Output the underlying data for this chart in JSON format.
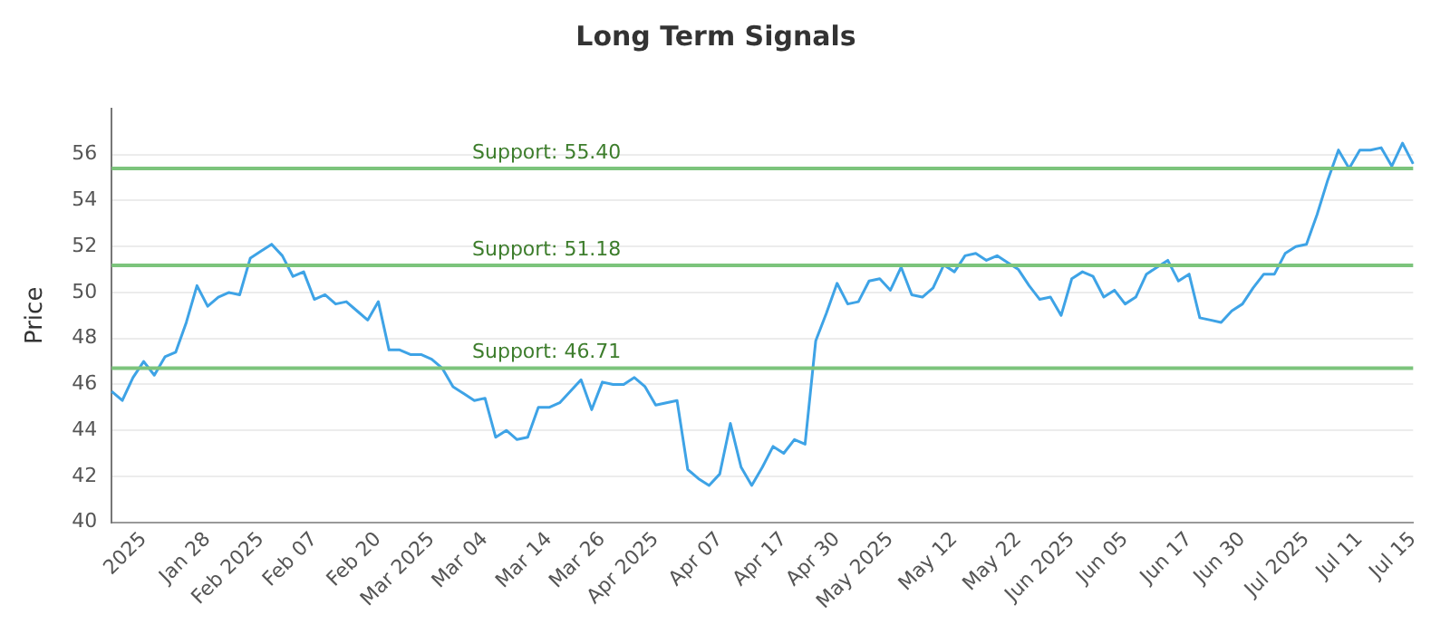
{
  "chart_data": {
    "type": "line",
    "title": "Long Term Signals",
    "ylabel": "Price",
    "categories": [
      null,
      null,
      null,
      "2025",
      null,
      null,
      null,
      null,
      null,
      "Jan 28",
      null,
      null,
      null,
      null,
      "Feb 2025",
      null,
      null,
      null,
      null,
      "Feb 07",
      null,
      null,
      null,
      null,
      null,
      "Feb 20",
      null,
      null,
      null,
      null,
      "Mar 2025",
      null,
      null,
      null,
      null,
      "Mar 04",
      null,
      null,
      null,
      null,
      null,
      "Mar 14",
      null,
      null,
      null,
      null,
      "Mar 26",
      null,
      null,
      null,
      null,
      "Apr 2025",
      null,
      null,
      null,
      null,
      null,
      "Apr 07",
      null,
      null,
      null,
      null,
      null,
      "Apr 17",
      null,
      null,
      null,
      null,
      "Apr 30",
      null,
      null,
      null,
      null,
      "May 2025",
      null,
      null,
      null,
      null,
      null,
      "May 12",
      null,
      null,
      null,
      null,
      null,
      "May 22",
      null,
      null,
      null,
      null,
      "Jun 2025",
      null,
      null,
      null,
      null,
      "Jun 05",
      null,
      null,
      null,
      null,
      null,
      "Jun 17",
      null,
      null,
      null,
      null,
      "Jun 30",
      null,
      null,
      null,
      null,
      null,
      "Jul 2025",
      null,
      null,
      null,
      null,
      "Jul 11",
      null,
      null,
      null,
      null,
      "Jul 15"
    ],
    "series": [
      {
        "color": "#3ea3e6",
        "values": [
          45.7,
          45.3,
          46.3,
          47.0,
          46.4,
          47.2,
          47.4,
          48.7,
          50.3,
          49.4,
          49.8,
          50.0,
          49.9,
          51.5,
          51.8,
          52.1,
          51.6,
          50.7,
          50.9,
          49.7,
          49.9,
          49.5,
          49.6,
          49.2,
          48.8,
          49.6,
          47.5,
          47.5,
          47.3,
          47.3,
          47.1,
          46.7,
          45.9,
          45.6,
          45.3,
          45.4,
          43.7,
          44.0,
          43.6,
          43.7,
          45.0,
          45.0,
          45.2,
          45.7,
          46.2,
          44.9,
          46.1,
          46.0,
          46.0,
          46.3,
          45.9,
          45.1,
          45.2,
          45.3,
          42.3,
          41.9,
          41.6,
          42.1,
          44.3,
          42.4,
          41.6,
          42.4,
          43.3,
          43.0,
          43.6,
          43.4,
          47.9,
          49.1,
          50.4,
          49.5,
          49.6,
          50.5,
          50.6,
          50.1,
          51.1,
          49.9,
          49.8,
          50.2,
          51.2,
          50.9,
          51.6,
          51.7,
          51.4,
          51.6,
          51.3,
          51.0,
          50.3,
          49.7,
          49.8,
          49.0,
          50.6,
          50.9,
          50.7,
          49.8,
          50.1,
          49.5,
          49.8,
          50.8,
          51.1,
          51.4,
          50.5,
          50.8,
          48.9,
          48.8,
          48.7,
          49.2,
          49.5,
          50.2,
          50.8,
          50.8,
          51.7,
          52.0,
          52.1,
          53.4,
          54.9,
          56.2,
          55.4,
          56.2,
          56.2,
          56.3,
          55.5,
          56.5,
          55.6
        ]
      }
    ],
    "ylim": [
      40,
      58
    ],
    "yticks": [
      40,
      42,
      44,
      46,
      48,
      50,
      52,
      54,
      56
    ],
    "ref_lines": [
      {
        "axis": "y",
        "value": 55.4,
        "label": "Support: 55.40",
        "color": "#7cc47c"
      },
      {
        "axis": "y",
        "value": 51.18,
        "label": "Support: 51.18",
        "color": "#7cc47c"
      },
      {
        "axis": "y",
        "value": 46.71,
        "label": "Support: 46.71",
        "color": "#7cc47c"
      }
    ],
    "grid": "y",
    "legend": false,
    "marker": "none",
    "line_style": "solid"
  }
}
